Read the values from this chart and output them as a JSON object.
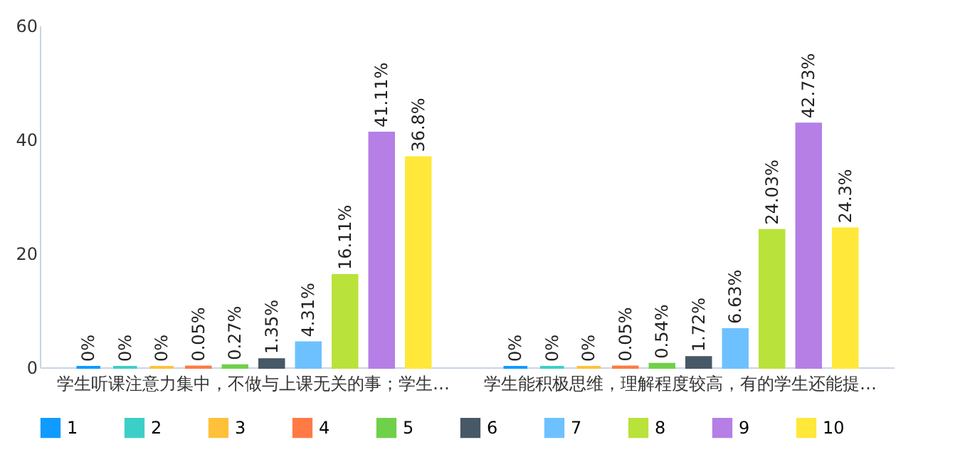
{
  "chart_data": {
    "type": "bar",
    "categories": [
      "学生听课注意力集中，不做与上课无关的事；学生…",
      "学生能积极思维，理解程度较高，有的学生还能提…"
    ],
    "series": [
      {
        "name": "1",
        "color": "#0f9bff",
        "values": [
          0,
          0
        ],
        "value_labels": [
          "0%",
          "0%"
        ]
      },
      {
        "name": "2",
        "color": "#3ccfc8",
        "values": [
          0,
          0
        ],
        "value_labels": [
          "0%",
          "0%"
        ]
      },
      {
        "name": "3",
        "color": "#ffc13a",
        "values": [
          0,
          0
        ],
        "value_labels": [
          "0%",
          "0%"
        ]
      },
      {
        "name": "4",
        "color": "#ff7a45",
        "values": [
          0.05,
          0.05
        ],
        "value_labels": [
          "0.05%",
          "0.05%"
        ]
      },
      {
        "name": "5",
        "color": "#6fd14a",
        "values": [
          0.27,
          0.54
        ],
        "value_labels": [
          "0.27%",
          "0.54%"
        ]
      },
      {
        "name": "6",
        "color": "#475866",
        "values": [
          1.35,
          1.72
        ],
        "value_labels": [
          "1.35%",
          "1.72%"
        ]
      },
      {
        "name": "7",
        "color": "#6ec1ff",
        "values": [
          4.31,
          6.63
        ],
        "value_labels": [
          "4.31%",
          "6.63%"
        ]
      },
      {
        "name": "8",
        "color": "#b9e23a",
        "values": [
          16.11,
          24.03
        ],
        "value_labels": [
          "16.11%",
          "24.03%"
        ]
      },
      {
        "name": "9",
        "color": "#b57fe6",
        "values": [
          41.11,
          42.73
        ],
        "value_labels": [
          "41.11%",
          "42.73%"
        ]
      },
      {
        "name": "10",
        "color": "#ffe83a",
        "values": [
          36.8,
          24.3
        ],
        "value_labels": [
          "36.8%",
          "24.3%"
        ]
      }
    ],
    "ylim": [
      0,
      60
    ],
    "yticks": [
      0,
      20,
      40,
      60
    ],
    "grid": false,
    "legend": "bottom"
  }
}
